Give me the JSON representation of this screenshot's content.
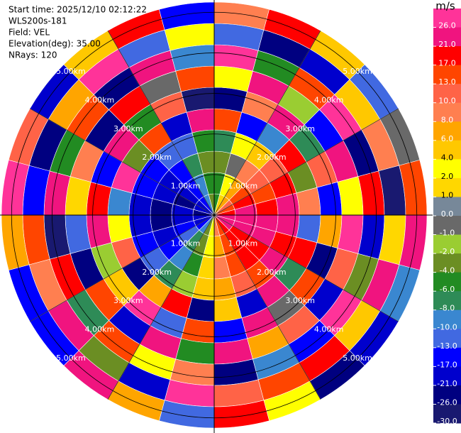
{
  "chart_data": {
    "type": "ppi",
    "header": [
      "Start time: 2025/12/10 02:12:22",
      "WLS200s-181",
      "Field: VEL",
      "Elevation(deg): 35.00",
      "NRays: 120"
    ],
    "max_range": 5.25,
    "rings": [
      {
        "value": 1,
        "label": "1.00km"
      },
      {
        "value": 2,
        "label": "2.00km"
      },
      {
        "value": 3,
        "label": "3.00km"
      },
      {
        "value": 4,
        "label": "4.00km"
      },
      {
        "value": 5,
        "label": "5.00km"
      }
    ],
    "colorbar": {
      "unit": "m/s",
      "levels": [
        {
          "value": 26,
          "label": "26.0"
        },
        {
          "value": 21,
          "label": "21.0"
        },
        {
          "value": 17,
          "label": "17.0"
        },
        {
          "value": 13,
          "label": "13.0"
        },
        {
          "value": 10,
          "label": "10.0"
        },
        {
          "value": 8,
          "label": "8.0"
        },
        {
          "value": 6,
          "label": "6.0"
        },
        {
          "value": 4,
          "label": "4.0"
        },
        {
          "value": 2,
          "label": "2.0"
        },
        {
          "value": 1,
          "label": "1.0"
        },
        {
          "value": 0,
          "label": "0.0"
        },
        {
          "value": -1,
          "label": "-1.0"
        },
        {
          "value": -2,
          "label": "-2.0"
        },
        {
          "value": -4,
          "label": "-4.0"
        },
        {
          "value": -6,
          "label": "-6.0"
        },
        {
          "value": -8,
          "label": "-8.0"
        },
        {
          "value": -10,
          "label": "-10.0"
        },
        {
          "value": -13,
          "label": "-13.0"
        },
        {
          "value": -17,
          "label": "-17.0"
        },
        {
          "value": -21,
          "label": "-21.0"
        },
        {
          "value": -26,
          "label": "-26.0"
        },
        {
          "value": -30,
          "label": "-30.0"
        }
      ],
      "colors": [
        "#ff3399",
        "#f0147f",
        "#ff0000",
        "#ff4500",
        "#ff6347",
        "#ff7f50",
        "#ffa500",
        "#ffc800",
        "#ffff00",
        "#ffd700",
        "#778899",
        "#696969",
        "#9acd32",
        "#6b8e23",
        "#228b22",
        "#2e8b57",
        "#3a87d0",
        "#4169e1",
        "#0000ff",
        "#0000cd",
        "#000080",
        "#191970"
      ]
    },
    "field": [
      [
        -5,
        -6,
        -4,
        -8,
        14,
        -22,
        3,
        26,
        -13,
        8
      ],
      [
        1,
        2,
        -1,
        3,
        -17,
        9,
        22,
        -6,
        -26,
        17
      ],
      [
        7,
        6,
        8,
        5,
        -10,
        24,
        -2,
        13,
        -21,
        5
      ],
      [
        12,
        13,
        10,
        11,
        20,
        -8,
        -17,
        27,
        4,
        -13
      ],
      [
        16,
        17,
        15,
        18,
        -4,
        11,
        25,
        -22,
        9,
        -1
      ],
      [
        20,
        21,
        19,
        22,
        8,
        -15,
        3,
        18,
        -27,
        14
      ],
      [
        22,
        23,
        21,
        24,
        -12,
        6,
        27,
        -19,
        1,
        22
      ],
      [
        22,
        21,
        23,
        20,
        17,
        -24,
        10,
        -3,
        24,
        -9
      ],
      [
        21,
        20,
        19,
        22,
        -7,
        14,
        -18,
        26,
        5,
        -21
      ],
      [
        18,
        17,
        19,
        16,
        25,
        -1,
        12,
        -14,
        20,
        -26
      ],
      [
        14,
        15,
        13,
        12,
        -20,
        23,
        7,
        -9,
        16,
        2
      ],
      [
        8,
        7,
        9,
        6,
        4,
        -16,
        21,
        -25,
        11,
        18
      ],
      [
        2,
        3,
        1,
        4,
        -23,
        15,
        -5,
        9,
        27,
        -12
      ],
      [
        -4,
        -3,
        -5,
        -2,
        19,
        -11,
        24,
        2,
        -18,
        7
      ],
      [
        -9,
        -8,
        -10,
        -7,
        6,
        27,
        -20,
        13,
        -3,
        23
      ],
      [
        -14,
        -13,
        -15,
        -12,
        -25,
        5,
        16,
        -7,
        22,
        -17
      ],
      [
        -18,
        -17,
        -19,
        -16,
        11,
        -2,
        -23,
        20,
        8,
        -14
      ],
      [
        -21,
        -20,
        -22,
        -19,
        3,
        24,
        -12,
        -27,
        15,
        6
      ],
      [
        -22,
        -21,
        -23,
        -18,
        -9,
        18,
        1,
        23,
        -16,
        26
      ],
      [
        -21,
        -22,
        -20,
        -17,
        26,
        -14,
        9,
        -5,
        -24,
        12
      ],
      [
        -19,
        -18,
        -20,
        -16,
        -3,
        21,
        -26,
        14,
        7,
        -19
      ],
      [
        -15,
        -14,
        -16,
        -13,
        13,
        -6,
        17,
        -22,
        27,
        4
      ],
      [
        -9,
        -10,
        -8,
        -11,
        -19,
        10,
        -1,
        25,
        -13,
        20
      ],
      [
        -4,
        -5,
        -3,
        -6,
        22,
        -27,
        14,
        -10,
        3,
        -16
      ]
    ]
  }
}
